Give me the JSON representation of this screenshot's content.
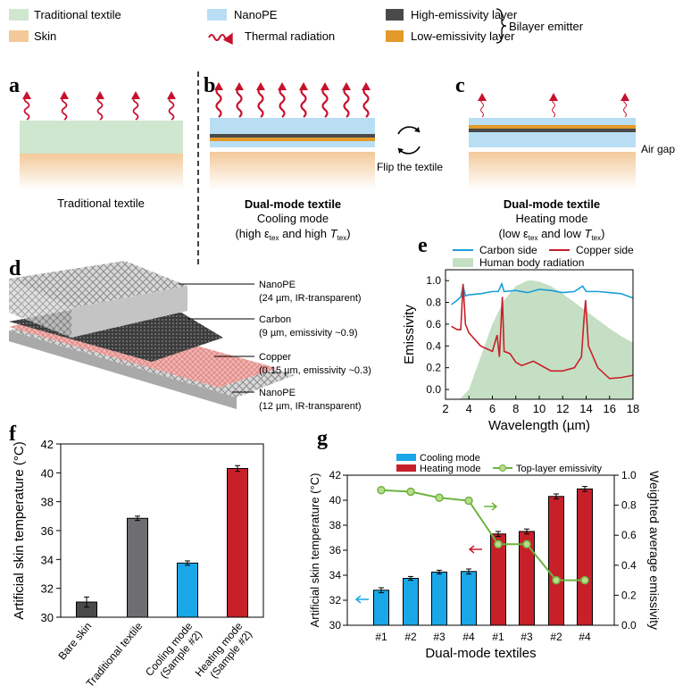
{
  "legend": {
    "traditional_textile": "Traditional textile",
    "skin": "Skin",
    "nanope": "NanoPE",
    "thermal_radiation": "Thermal radiation",
    "high_emissivity": "High-emissivity layer",
    "low_emissivity": "Low-emissivity layer",
    "bilayer_emitter": "Bilayer emitter"
  },
  "colors": {
    "textile": "#cfe6cf",
    "skin": "#f3c99a",
    "nanope": "#b9def3",
    "high_layer": "#4a4a4a",
    "low_layer": "#e39a2a",
    "radiation": "#c8102e",
    "cooling": "#1aa7e8",
    "heating": "#c8202a",
    "emissivity": "#6db33f",
    "body_radiation": "#c5dfc4",
    "carbon": "#1a9fd8",
    "copper": "#c8202a"
  },
  "panels": {
    "a": {
      "label": "a",
      "caption": "Traditional textile"
    },
    "b": {
      "label": "b",
      "title": "Dual-mode textile",
      "mode": "Cooling mode",
      "cond": {
        "pre": "(high ε",
        "sub1": "tex",
        "mid": " and high ",
        "T": "T",
        "sub2": "tex",
        "post": ")"
      }
    },
    "flip": "Flip the textile",
    "c": {
      "label": "c",
      "title": "Dual-mode textile",
      "mode": "Heating mode",
      "air_gap": "Air gap",
      "cond": {
        "pre": "(low ε",
        "sub1": "tex",
        "mid": " and low ",
        "T": "T",
        "sub2": "tex",
        "post": ")"
      }
    },
    "d": {
      "label": "d",
      "layers": [
        {
          "name": "NanoPE",
          "detail": "(24 µm, IR-transparent)"
        },
        {
          "name": "Carbon",
          "detail": "(9 µm, emissivity ~0.9)"
        },
        {
          "name": "Copper",
          "detail": "(0.15 µm, emissivity ~0.3)"
        },
        {
          "name": "NanoPE",
          "detail": "(12 µm, IR-transparent)"
        }
      ]
    },
    "e": {
      "label": "e"
    },
    "f": {
      "label": "f"
    },
    "g": {
      "label": "g"
    }
  },
  "chart_data": [
    {
      "id": "e",
      "type": "line",
      "title": "",
      "xlabel": "Wavelength (µm)",
      "ylabel": "Emissivity",
      "xlim": [
        2,
        18
      ],
      "ylim": [
        -0.09,
        1.1
      ],
      "xticks": [
        2,
        4,
        6,
        8,
        10,
        12,
        14,
        16,
        18
      ],
      "yticks": [
        0.0,
        0.2,
        0.4,
        0.6,
        0.8,
        1.0
      ],
      "ytick_labels": [
        "0.0",
        "0.2",
        "0.4",
        "0.6",
        "0.8",
        "1.0"
      ],
      "legend": {
        "placement": "top",
        "entries": [
          "Carbon side",
          "Copper side",
          "Human body radiation"
        ]
      },
      "series": [
        {
          "name": "Carbon side",
          "x": [
            2.5,
            3,
            3.3,
            3.5,
            3.7,
            4,
            5,
            6,
            6.5,
            6.8,
            7,
            8,
            9,
            10,
            11,
            12,
            13,
            13.7,
            14,
            15,
            16,
            17,
            18
          ],
          "y": [
            0.78,
            0.82,
            0.85,
            0.95,
            0.86,
            0.87,
            0.88,
            0.9,
            0.9,
            0.97,
            0.9,
            0.91,
            0.89,
            0.92,
            0.91,
            0.89,
            0.9,
            0.95,
            0.9,
            0.9,
            0.89,
            0.88,
            0.84
          ]
        },
        {
          "name": "Copper side",
          "x": [
            2.5,
            3,
            3.3,
            3.5,
            3.7,
            4,
            5,
            6,
            6.4,
            6.6,
            6.85,
            7,
            7.5,
            8,
            8.5,
            9.5,
            10,
            11,
            12,
            13,
            13.6,
            13.8,
            13.95,
            14.2,
            15,
            16,
            17,
            18
          ],
          "y": [
            0.58,
            0.55,
            0.55,
            0.97,
            0.6,
            0.52,
            0.4,
            0.35,
            0.5,
            0.3,
            0.85,
            0.35,
            0.33,
            0.25,
            0.22,
            0.26,
            0.23,
            0.17,
            0.17,
            0.2,
            0.3,
            0.62,
            0.82,
            0.4,
            0.2,
            0.1,
            0.11,
            0.13
          ]
        },
        {
          "name": "Human body radiation",
          "type": "area",
          "x": [
            3.2,
            4,
            5,
            6,
            7,
            8,
            9,
            9.5,
            10,
            11,
            12,
            13,
            14,
            15,
            16,
            17,
            18
          ],
          "y": [
            -0.09,
            0.0,
            0.3,
            0.6,
            0.82,
            0.95,
            1.0,
            1.0,
            0.99,
            0.95,
            0.88,
            0.8,
            0.72,
            0.64,
            0.56,
            0.49,
            0.43
          ]
        }
      ]
    },
    {
      "id": "f",
      "type": "bar",
      "ylabel": "Artificial skin temperature (°C)",
      "xlabel": "",
      "ylim": [
        30,
        42
      ],
      "yticks": [
        30,
        32,
        34,
        36,
        38,
        40,
        42
      ],
      "categories": [
        "Bare skin",
        "Traditional textile",
        "Cooling mode|(Sample #2)",
        "Heating mode|(Sample #2)"
      ],
      "values": [
        31.05,
        36.85,
        33.75,
        40.3
      ],
      "errors": [
        0.35,
        0.15,
        0.15,
        0.2
      ],
      "bar_colors": [
        "#4a4a4a",
        "#6e6e70",
        "#1aa7e8",
        "#c8202a"
      ]
    },
    {
      "id": "g",
      "type": "bar",
      "xlabel": "Dual-mode textiles",
      "ylabel": "Artificial skin temperature (°C)",
      "y2label": "Weighted average emissivity",
      "ylim": [
        30,
        42
      ],
      "yticks": [
        30,
        32,
        34,
        36,
        38,
        40,
        42
      ],
      "y2lim": [
        0,
        1.0
      ],
      "y2ticks": [
        0.0,
        0.2,
        0.4,
        0.6,
        0.8,
        1.0
      ],
      "y2tick_labels": [
        "0.0",
        "0.2",
        "0.4",
        "0.6",
        "0.8",
        "1.0"
      ],
      "categories": [
        "#1",
        "#2",
        "#3",
        "#4",
        "#1",
        "#3",
        "#2",
        "#4"
      ],
      "series": [
        {
          "name": "Cooling mode",
          "mode": "cooling",
          "values": [
            32.8,
            33.75,
            34.25,
            34.3,
            null,
            null,
            null,
            null
          ],
          "errors": [
            0.2,
            0.15,
            0.15,
            0.2,
            null,
            null,
            null,
            null
          ]
        },
        {
          "name": "Heating mode",
          "mode": "heating",
          "values": [
            null,
            null,
            null,
            null,
            37.3,
            37.5,
            40.3,
            40.9
          ],
          "errors": [
            null,
            null,
            null,
            null,
            0.2,
            0.2,
            0.2,
            0.2
          ]
        },
        {
          "name": "Top-layer emissivity",
          "type": "line",
          "axis": "right",
          "values": [
            0.9,
            0.89,
            0.85,
            0.83,
            0.54,
            0.54,
            0.3,
            0.3
          ]
        }
      ],
      "legend": {
        "placement": "top",
        "entries": [
          "Cooling mode",
          "Heating mode",
          "Top-layer emissivity"
        ]
      }
    }
  ]
}
